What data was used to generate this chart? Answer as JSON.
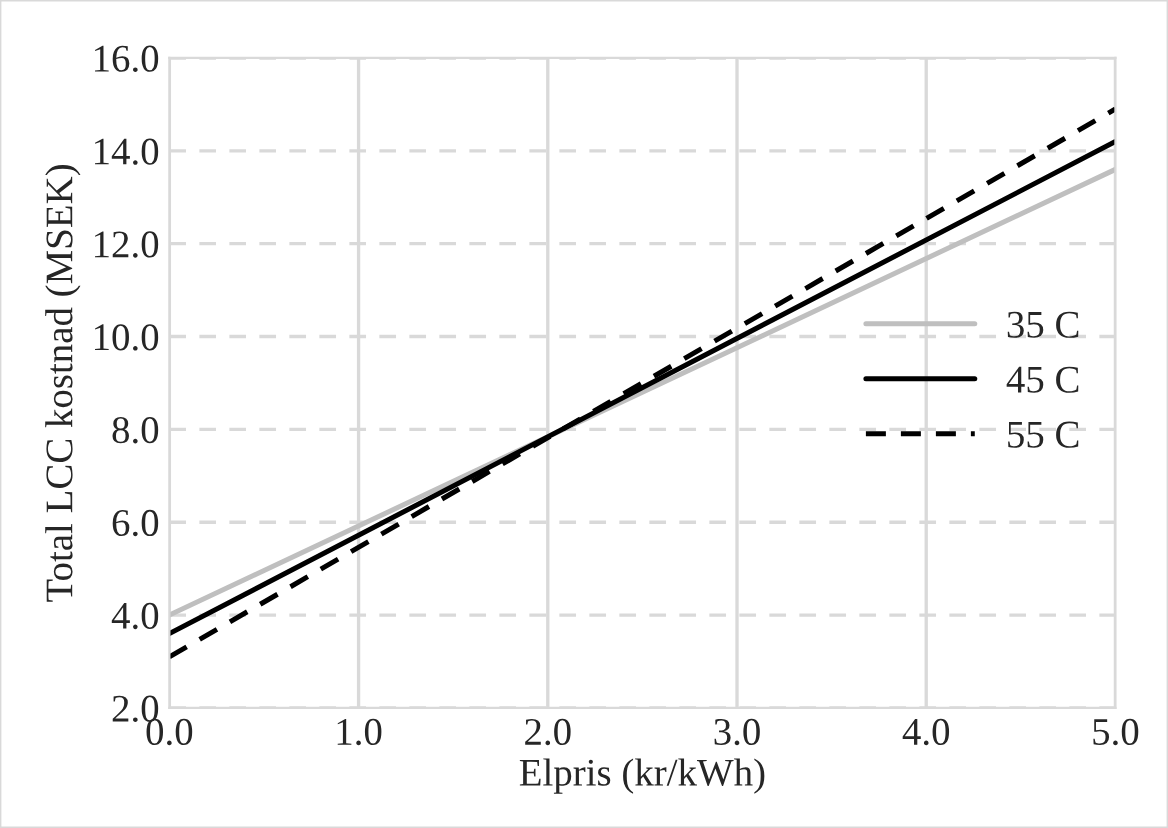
{
  "chart_data": {
    "type": "line",
    "xlabel": "Elpris (kr/kWh)",
    "ylabel": "Total LCC kostnad (MSEK)",
    "x": [
      0,
      5
    ],
    "series": [
      {
        "name": "35 C",
        "color": "#bfbfbf",
        "values": [
          4.0,
          13.6
        ],
        "line_style": "solid"
      },
      {
        "name": "45 C",
        "color": "#000000",
        "values": [
          3.6,
          14.2
        ],
        "line_style": "solid"
      },
      {
        "name": "55 C",
        "color": "#000000",
        "values": [
          3.1,
          14.9
        ],
        "line_style": "dashed"
      }
    ],
    "xlim": [
      0,
      5
    ],
    "xticks": [
      {
        "value": 0,
        "label": "0.0"
      },
      {
        "value": 1,
        "label": "1.0"
      },
      {
        "value": 2,
        "label": "2.0"
      },
      {
        "value": 3,
        "label": "3.0"
      },
      {
        "value": 4,
        "label": "4.0"
      },
      {
        "value": 5,
        "label": "5.0"
      }
    ],
    "ylim": [
      2,
      16
    ],
    "yticks": [
      {
        "value": 2,
        "label": "2.0"
      },
      {
        "value": 4,
        "label": "4.0"
      },
      {
        "value": 6,
        "label": "6.0"
      },
      {
        "value": 8,
        "label": "8.0"
      },
      {
        "value": 10,
        "label": "10.0"
      },
      {
        "value": 12,
        "label": "12.0"
      },
      {
        "value": 14,
        "label": "14.0"
      },
      {
        "value": 16,
        "label": "16.0"
      }
    ],
    "grid": true,
    "legend": "center right",
    "marker": "none"
  }
}
